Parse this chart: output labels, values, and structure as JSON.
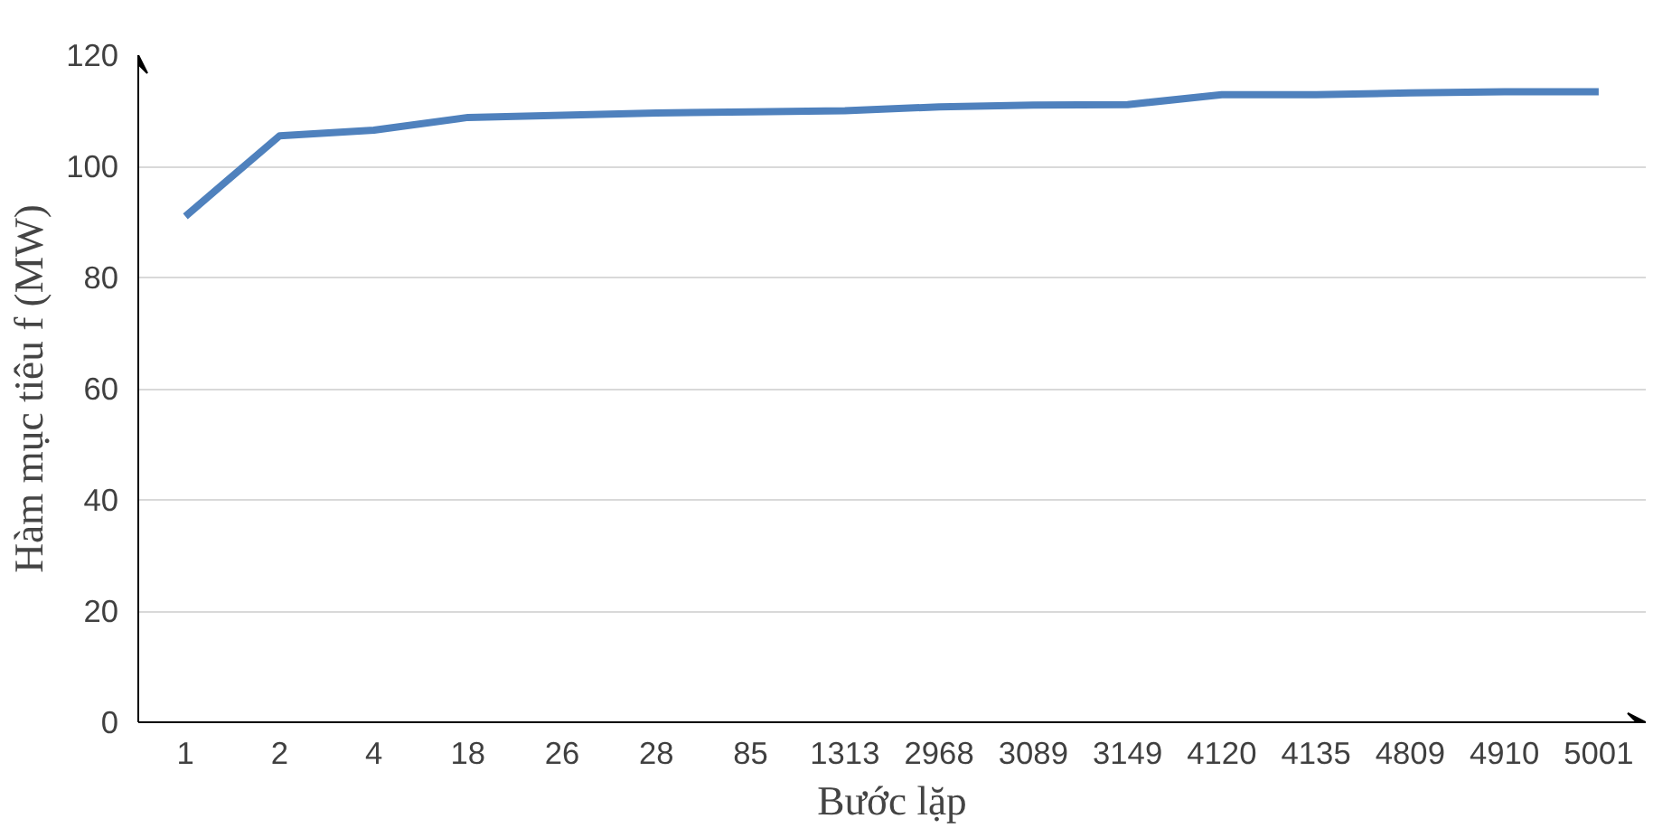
{
  "chart_data": {
    "type": "line",
    "xlabel": "Bước lặp",
    "ylabel": "Hàm mục tiêu f (MW)",
    "categories": [
      "1",
      "2",
      "4",
      "18",
      "26",
      "28",
      "85",
      "1313",
      "2968",
      "3089",
      "3149",
      "4120",
      "4135",
      "4809",
      "4910",
      "5001"
    ],
    "series": [
      {
        "color": "#4f81bd",
        "values": [
          91,
          105.5,
          106.5,
          108.8,
          109.2,
          109.6,
          109.8,
          110,
          110.7,
          111,
          111.1,
          112.9,
          112.9,
          113.2,
          113.4,
          113.4
        ]
      }
    ],
    "ylim": [
      0,
      120
    ],
    "yticks": [
      0,
      20,
      40,
      60,
      80,
      100,
      120
    ],
    "grid": "y",
    "line_style": "solid",
    "marker": "none"
  }
}
